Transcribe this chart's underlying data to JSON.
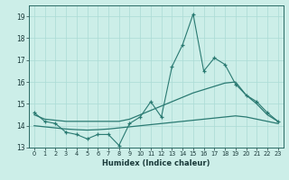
{
  "xlabel": "Humidex (Indice chaleur)",
  "x": [
    0,
    1,
    2,
    3,
    4,
    5,
    6,
    7,
    8,
    9,
    10,
    11,
    12,
    13,
    14,
    15,
    16,
    17,
    18,
    19,
    20,
    21,
    22,
    23
  ],
  "y_main": [
    14.6,
    14.2,
    14.1,
    13.7,
    13.6,
    13.4,
    13.6,
    13.6,
    13.1,
    14.1,
    14.4,
    15.1,
    14.4,
    16.7,
    17.7,
    19.1,
    16.5,
    17.1,
    16.8,
    15.9,
    15.4,
    15.1,
    14.6,
    14.2
  ],
  "y_upper": [
    14.5,
    14.3,
    14.25,
    14.2,
    14.2,
    14.2,
    14.2,
    14.2,
    14.2,
    14.3,
    14.5,
    14.7,
    14.9,
    15.1,
    15.3,
    15.5,
    15.65,
    15.8,
    15.95,
    16.0,
    15.4,
    15.0,
    14.5,
    14.2
  ],
  "y_lower": [
    14.0,
    13.95,
    13.9,
    13.85,
    13.82,
    13.8,
    13.82,
    13.85,
    13.9,
    13.95,
    14.0,
    14.05,
    14.1,
    14.15,
    14.2,
    14.25,
    14.3,
    14.35,
    14.4,
    14.45,
    14.4,
    14.3,
    14.2,
    14.1
  ],
  "bg_color": "#cceee8",
  "line_color": "#2a7a72",
  "grid_color": "#aadbd5",
  "ylim": [
    13.0,
    19.5
  ],
  "xlim": [
    -0.5,
    23.5
  ],
  "yticks": [
    13,
    14,
    15,
    16,
    17,
    18,
    19
  ]
}
